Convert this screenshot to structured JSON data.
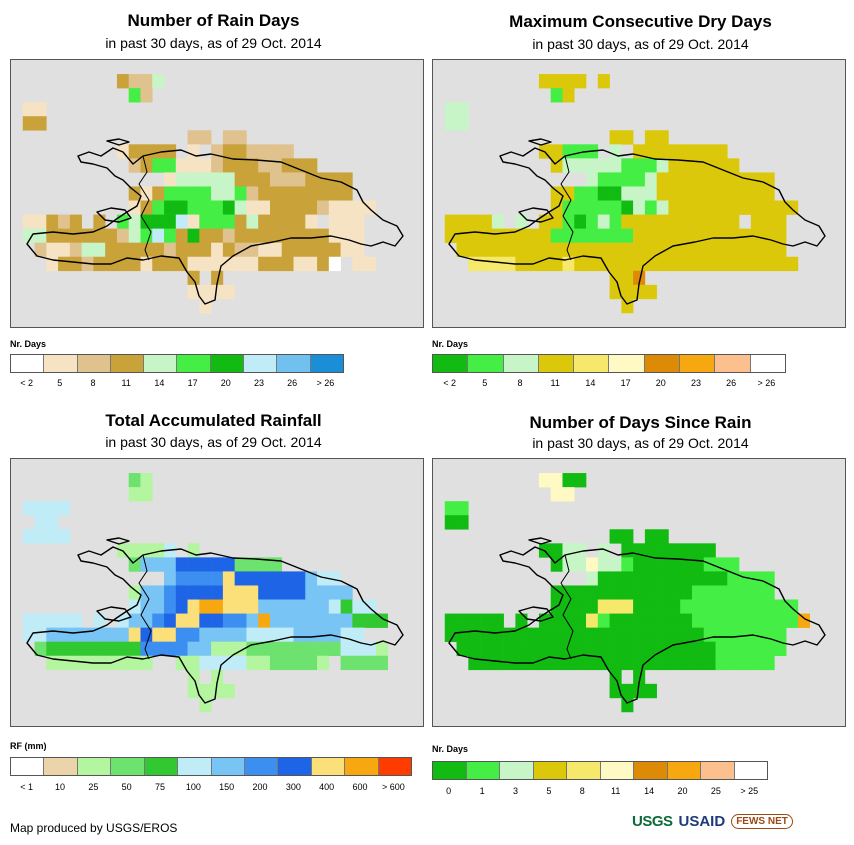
{
  "colors": {
    "map_bg": "#e0e0e0",
    "coast": "#000000"
  },
  "panels": [
    {
      "id": "rain_days",
      "title": "Number of Rain Days",
      "subtitle": "in past 30 days, as of 29 Oct. 2014",
      "legend_title": "Nr. Days",
      "legend_colors": [
        "#ffffff",
        "#f5e3c4",
        "#e0c28e",
        "#c9a23a",
        "#c8f5c8",
        "#44ee44",
        "#11bb11",
        "#c0ecf8",
        "#70c0f0",
        "#1a8fd8"
      ],
      "legend_ticks": [
        "< 2",
        "5",
        "8",
        "11",
        "14",
        "17",
        "20",
        "23",
        "26",
        "> 26"
      ],
      "fill_codes": [
        "#e0c28e",
        "#c9a23a",
        "#f5e3c4",
        "#c8f5c8",
        "#44ee44",
        "#11bb11",
        "#c0ecf8",
        "#ffffff"
      ],
      "grid": [
        "...................................",
        ".........1003......................",
        "..........40.......................",
        ".22................................",
        ".11................................",
        "...............00.00...............",
        ".........21111.2.0110000...........",
        "..........0144222011100111.........",
        ".............2333331110001111.......",
        "..........1214444334011111111.......",
        "..........214554445322111102222.....",
        ".22101.1.43555624441311112.222......",
        ".33111111034641511011111111222......",
        "..0220331111101112100221111122......",
        "...2110111121112222221112217.22.....",
        "...............1.1.................",
        "...............2222................",
        "................2..................",
        "..................................."
      ]
    },
    {
      "id": "max_dry_days",
      "title": "Maximum Consecutive Dry Days",
      "subtitle": "in past 30 days, as of 29 Oct. 2014",
      "legend_title": "Nr. Days",
      "legend_colors": [
        "#11bb11",
        "#44ee44",
        "#c8f5c8",
        "#dcc80a",
        "#f5e86a",
        "#fff9c4",
        "#dd8a06",
        "#f7a710",
        "#fcbf8e",
        "#ffffff"
      ],
      "legend_ticks": [
        "< 2",
        "5",
        "8",
        "11",
        "14",
        "17",
        "20",
        "23",
        "26",
        "> 26"
      ],
      "fill_codes": [
        "#dcc80a",
        "#c8f5c8",
        "#44ee44",
        "#11bb11",
        "#f5e86a",
        "#fff9c4",
        "#dd8a06",
        "#ffffff"
      ],
      "grid": [
        "...................................",
        ".........0000.0....................",
        "..........20.......................",
        ".11................................",
        ".11................................",
        "...............00.00...............",
        ".........00222.1.00000000..........",
        "..........0111112221000000.........",
        ".............1222210000000000.......",
        "..........0022331110000000000.......",
        "..........022222312100000000000.....",
        ".00001.1.00232120000000000.000......",
        ".00000000022222220000000000000......",
        "..0000000000000000000000000000......",
        "...4444000040000000000000000000.....",
        "...............006.................",
        "...............0000................",
        "................0..................",
        "..................................."
      ]
    },
    {
      "id": "total_rainfall",
      "title": "Total Accumulated Rainfall",
      "subtitle": "in past 30 days, as of 29 Oct. 2014",
      "legend_title": "RF (mm)",
      "legend_colors": [
        "#ffffff",
        "#ecd4aa",
        "#b4f5a0",
        "#6ee26e",
        "#32c832",
        "#c0ecf8",
        "#78c4f4",
        "#3c8ef0",
        "#1e64e6",
        "#fbe07a",
        "#f7a710",
        "#ff3c00"
      ],
      "legend_ticks": [
        "< 1",
        "10",
        "25",
        "50",
        "75",
        "100",
        "150",
        "200",
        "300",
        "400",
        "600",
        "> 600"
      ],
      "fill_codes": [
        "#6ee26e",
        "#b4f5a0",
        "#c0ecf8",
        "#78c4f4",
        "#3c8ef0",
        "#1e64e6",
        "#fbe07a",
        "#f7a710",
        "#32c832",
        "#ecd4aa"
      ],
      "grid": [
        "...................................",
        "..........01.......................",
        "..........11.......................",
        ".2222..............................",
        "..22...............................",
        ".2222..............................",
        ".........11112.1................... ",
        "..........0333555550000............",
        ".............344446555555322........",
        "..........1334555566655553333.......",
        "..........233456776663333332822.....",
        ".22222.2.23345665544373333333888....",
        ".22333333365664433332222333322......",
        "..088888888444433111000000002221....",
        "...111111111..1122221100001.0000....",
        "...............1.1.................",
        "...............1111................",
        "................1..................",
        "..................................."
      ]
    },
    {
      "id": "days_since_rain",
      "title": "Number of Days Since Rain",
      "subtitle": "in past 30 days, as of 29 Oct. 2014",
      "legend_title": "Nr. Days",
      "legend_colors": [
        "#11bb11",
        "#44ee44",
        "#c8f5c8",
        "#dcc80a",
        "#f5e86a",
        "#fff9c4",
        "#dd8a06",
        "#f7a710",
        "#fcbf8e",
        "#ffffff"
      ],
      "legend_ticks": [
        "0",
        "1",
        "3",
        "5",
        "8",
        "11",
        "14",
        "20",
        "25",
        "> 25"
      ],
      "fill_codes": [
        "#11bb11",
        "#44ee44",
        "#c8f5c8",
        "#fff9c4",
        "#f5e86a",
        "#f7a710"
      ],
      "grid": [
        "...................................",
        ".........3300......................",
        "..........33.......................",
        ".11................................",
        ".00................................",
        "...............00.00...............",
        ".........0022.2.00000000...........",
        "..........0223221000000111.........",
        ".............2000000000001111.......",
        "..........0000000000001111111.......",
        "..........000044400001111111111.....",
        ".00000.0.00004100000001111111115....",
        ".00000000000000000000001111111......",
        "..0000000000000000000000111111......",
        "...00000000000000000000011111.......",
        "...............0.0.................",
        "...............0000................",
        "................0..................",
        "..................................."
      ]
    }
  ],
  "credit": "Map produced by USGS/EROS",
  "logos": {
    "usgs": "USGS",
    "usaid": "USAID",
    "fews": "FEWS NET"
  }
}
